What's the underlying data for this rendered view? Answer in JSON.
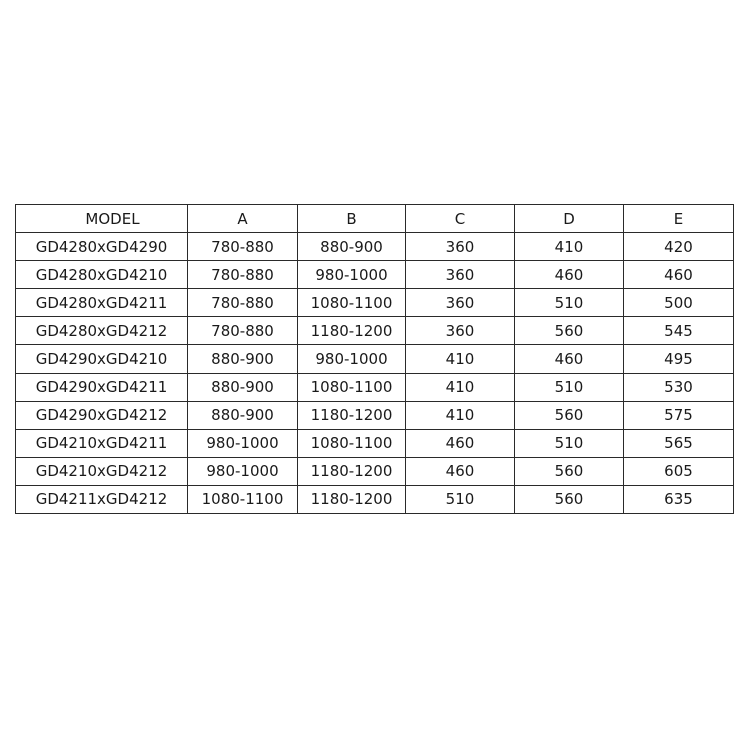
{
  "table": {
    "headers": [
      "MODEL",
      "A",
      "B",
      "C",
      "D",
      "E"
    ],
    "rows": [
      [
        "GD4280xGD4290",
        "780-880",
        "880-900",
        "360",
        "410",
        "420"
      ],
      [
        "GD4280xGD4210",
        "780-880",
        "980-1000",
        "360",
        "460",
        "460"
      ],
      [
        "GD4280xGD4211",
        "780-880",
        "1080-1100",
        "360",
        "510",
        "500"
      ],
      [
        "GD4280xGD4212",
        "780-880",
        "1180-1200",
        "360",
        "560",
        "545"
      ],
      [
        "GD4290xGD4210",
        "880-900",
        "980-1000",
        "410",
        "460",
        "495"
      ],
      [
        "GD4290xGD4211",
        "880-900",
        "1080-1100",
        "410",
        "510",
        "530"
      ],
      [
        "GD4290xGD4212",
        "880-900",
        "1180-1200",
        "410",
        "560",
        "575"
      ],
      [
        "GD4210xGD4211",
        "980-1000",
        "1080-1100",
        "460",
        "510",
        "565"
      ],
      [
        "GD4210xGD4212",
        "980-1000",
        "1180-1200",
        "460",
        "560",
        "605"
      ],
      [
        "GD4211xGD4212",
        "1080-1100",
        "1180-1200",
        "510",
        "560",
        "635"
      ]
    ]
  }
}
